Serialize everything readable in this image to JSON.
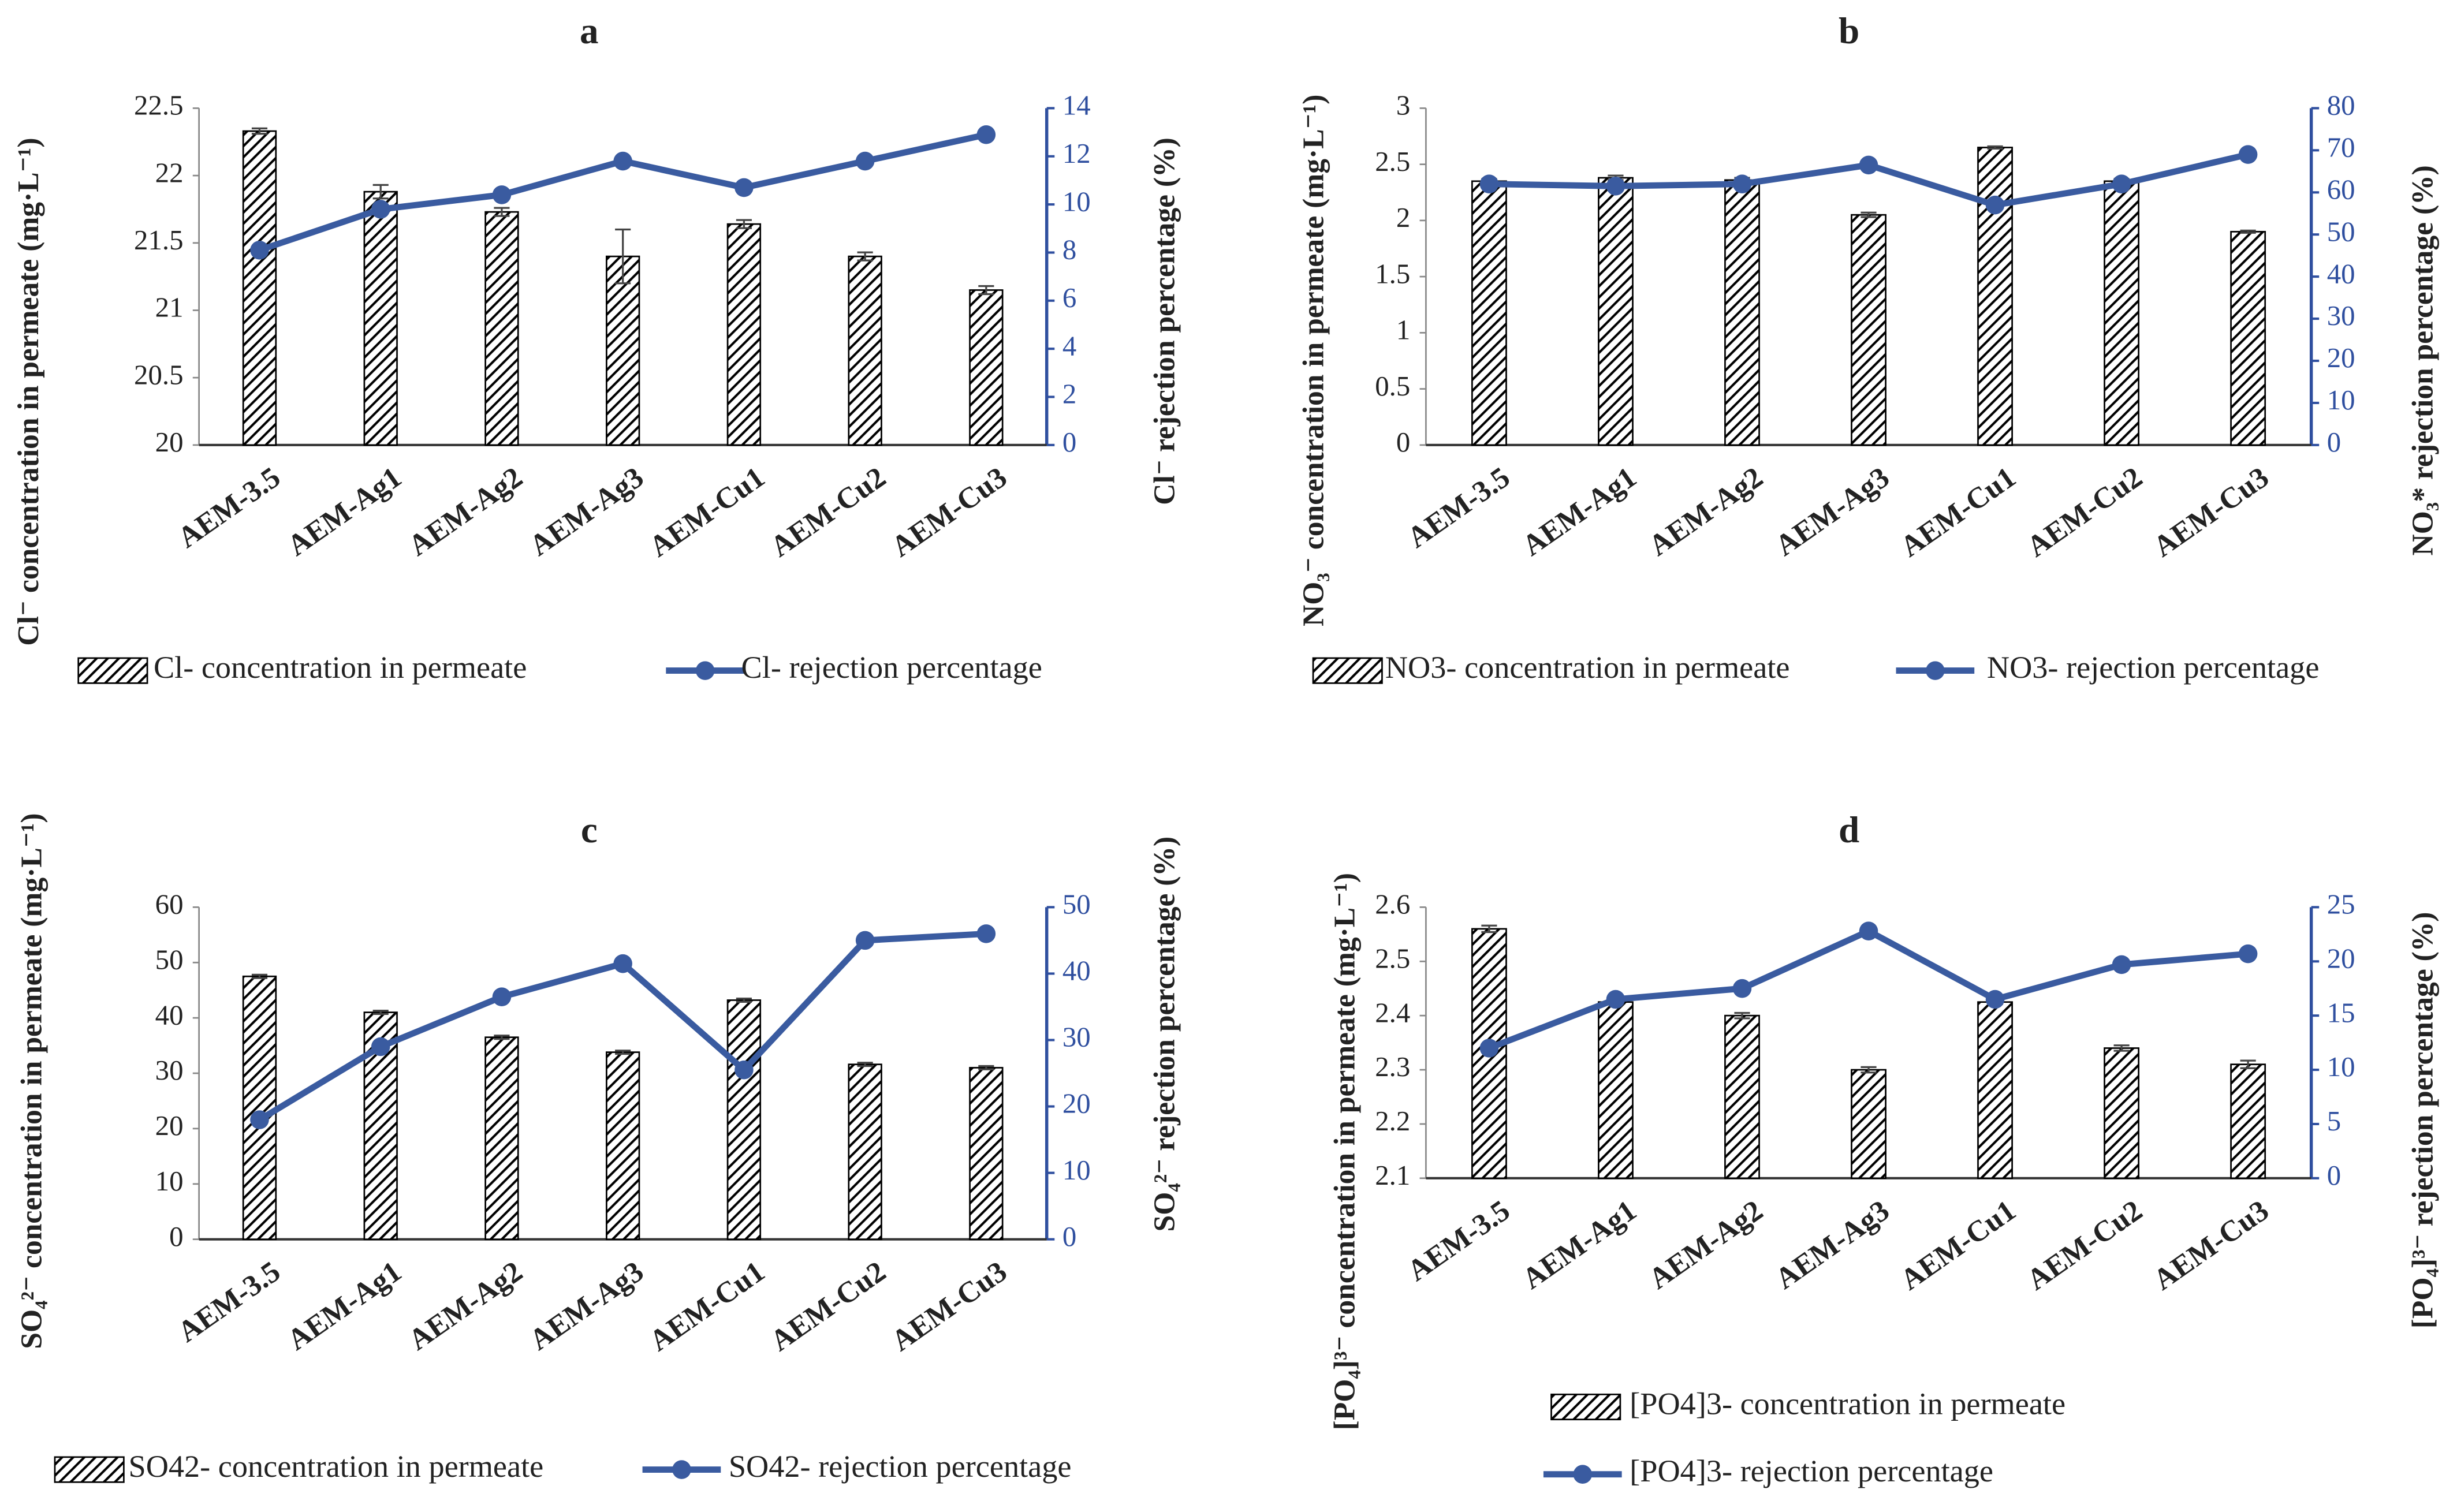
{
  "chart_data": [
    {
      "type": "combo",
      "title": "a",
      "y_label": "Cl⁻ concentration in permeate (mg·L⁻¹)",
      "y2_label": "Cl⁻ rejection percentage (%)",
      "categories": [
        "AEM-3.5",
        "AEM-Ag1",
        "AEM-Ag2",
        "AEM-Ag3",
        "AEM-Cu1",
        "AEM-Cu2",
        "AEM-Cu3"
      ],
      "series": [
        {
          "name": "Cl- concentration in permeate",
          "kind": "bar",
          "color": "#000000",
          "values": [
            22.33,
            21.88,
            21.73,
            21.4,
            21.64,
            21.4,
            21.15
          ],
          "errors": [
            0.02,
            0.05,
            0.03,
            0.2,
            0.03,
            0.03,
            0.03
          ]
        },
        {
          "name": "Cl- rejection percentage",
          "kind": "line",
          "axis": "y2",
          "color": "#3a5ba0",
          "values": [
            8.1,
            9.8,
            10.4,
            11.8,
            10.7,
            11.8,
            12.9
          ]
        }
      ],
      "ylim": [
        20,
        22.5
      ],
      "yticks": [
        20,
        20.5,
        21,
        21.5,
        22,
        22.5
      ],
      "y2lim": [
        0,
        14
      ],
      "y2ticks": [
        0,
        2,
        4,
        6,
        8,
        10,
        12,
        14
      ],
      "legend_direction": "row"
    },
    {
      "type": "combo",
      "title": "b",
      "y_label": "NO₃⁻ concentration in permeate (mg·L⁻¹)",
      "y2_label": "NO₃* rejection percentage (%)",
      "categories": [
        "AEM-3.5",
        "AEM-Ag1",
        "AEM-Ag2",
        "AEM-Ag3",
        "AEM-Cu1",
        "AEM-Cu2",
        "AEM-Cu3"
      ],
      "series": [
        {
          "name": "NO3- concentration in permeate",
          "kind": "bar",
          "color": "#000000",
          "values": [
            2.35,
            2.38,
            2.36,
            2.05,
            2.65,
            2.35,
            1.9
          ],
          "errors": [
            0.02,
            0.02,
            0.02,
            0.02,
            0.01,
            0.02,
            0.01
          ]
        },
        {
          "name": "NO3- rejection percentage",
          "kind": "line",
          "axis": "y2",
          "color": "#3a5ba0",
          "values": [
            62,
            61.5,
            62,
            66.5,
            57,
            62,
            69
          ]
        }
      ],
      "ylim": [
        0,
        3
      ],
      "yticks": [
        0,
        0.5,
        1,
        1.5,
        2,
        2.5,
        3
      ],
      "y2lim": [
        0,
        80
      ],
      "y2ticks": [
        0,
        10,
        20,
        30,
        40,
        50,
        60,
        70,
        80
      ],
      "legend_direction": "row"
    },
    {
      "type": "combo",
      "title": "c",
      "y_label": "SO₄²⁻ concentration in permeate (mg·L⁻¹)",
      "y2_label": "SO₄²⁻ rejection percentage (%)",
      "categories": [
        "AEM-3.5",
        "AEM-Ag1",
        "AEM-Ag2",
        "AEM-Ag3",
        "AEM-Cu1",
        "AEM-Cu2",
        "AEM-Cu3"
      ],
      "series": [
        {
          "name": "SO42- concentration in permeate",
          "kind": "bar",
          "color": "#000000",
          "values": [
            47.5,
            41,
            36.5,
            33.8,
            43.2,
            31.6,
            31
          ],
          "errors": [
            0.3,
            0.3,
            0.3,
            0.3,
            0.3,
            0.3,
            0.3
          ]
        },
        {
          "name": "SO42- rejection percentage",
          "kind": "line",
          "axis": "y2",
          "color": "#3a5ba0",
          "values": [
            18,
            29,
            36.5,
            41.5,
            25.5,
            45,
            46
          ]
        }
      ],
      "ylim": [
        0,
        60
      ],
      "yticks": [
        0,
        10,
        20,
        30,
        40,
        50,
        60
      ],
      "y2lim": [
        0,
        50
      ],
      "y2ticks": [
        0,
        10,
        20,
        30,
        40,
        50
      ],
      "legend_direction": "row"
    },
    {
      "type": "combo",
      "title": "d",
      "y_label": "[PO₄]³⁻ concentration in permeate (mg·L⁻¹)",
      "y2_label": "[PO₄]³⁻ rejection percentage (%)",
      "categories": [
        "AEM-3.5",
        "AEM-Ag1",
        "AEM-Ag2",
        "AEM-Ag3",
        "AEM-Cu1",
        "AEM-Cu2",
        "AEM-Cu3"
      ],
      "series": [
        {
          "name": "[PO4]3- concentration in permeate",
          "kind": "bar",
          "color": "#000000",
          "values": [
            2.56,
            2.425,
            2.4,
            2.3,
            2.425,
            2.34,
            2.31
          ],
          "errors": [
            0.006,
            0.004,
            0.005,
            0.005,
            0.004,
            0.005,
            0.007
          ]
        },
        {
          "name": "[PO4]3- rejection percentage",
          "kind": "line",
          "axis": "y2",
          "color": "#3a5ba0",
          "values": [
            12,
            16.5,
            17.5,
            22.8,
            16.5,
            19.7,
            20.7
          ]
        }
      ],
      "ylim": [
        2.1,
        2.6
      ],
      "yticks": [
        2.1,
        2.2,
        2.3,
        2.4,
        2.5,
        2.6
      ],
      "y2lim": [
        0,
        25
      ],
      "y2ticks": [
        0,
        5,
        10,
        15,
        20,
        25
      ],
      "legend_direction": "column"
    }
  ]
}
